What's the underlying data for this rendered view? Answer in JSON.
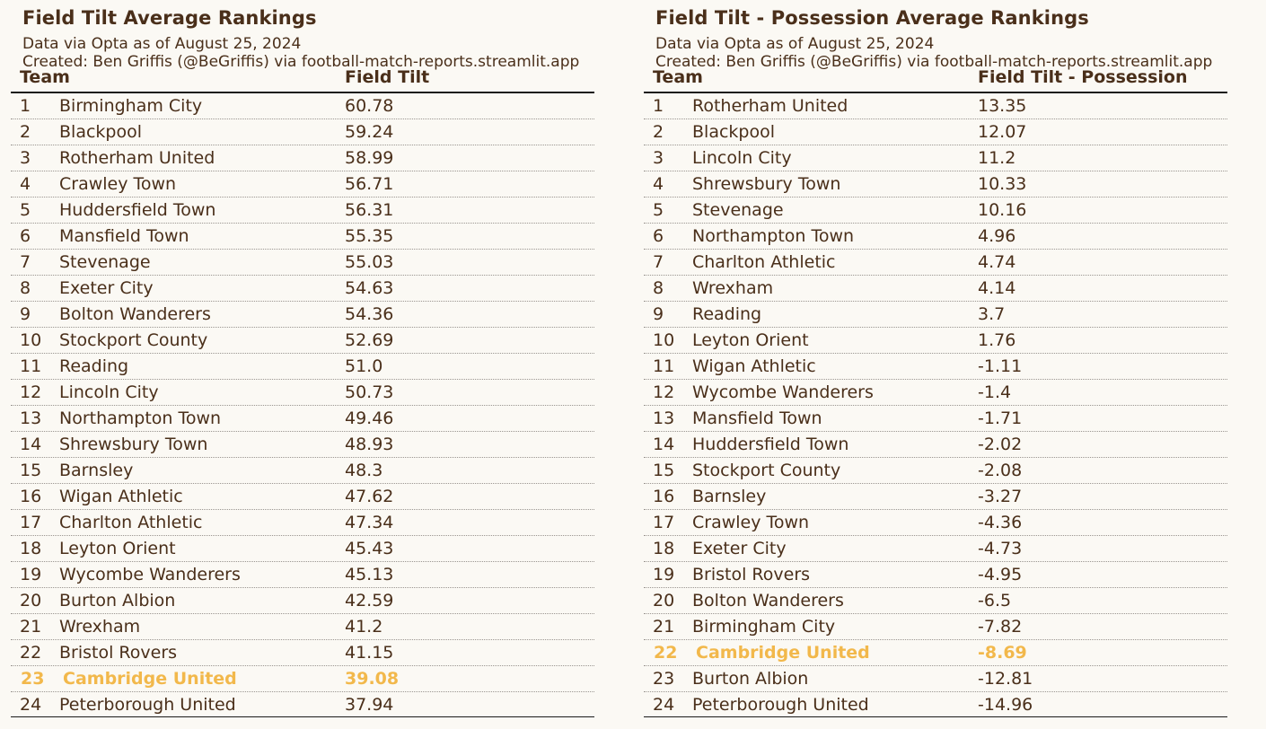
{
  "colors": {
    "background": "#fbf9f4",
    "text": "#4a2f1a",
    "highlight": "#f2b84b",
    "rule": "#1a1a1a",
    "separator": "#9a9590"
  },
  "highlight_team": "Cambridge United",
  "chart_data": [
    {
      "type": "table",
      "title": "Field Tilt Average Rankings",
      "subtitle_lines": [
        "Data via Opta as of August 25, 2024",
        "Created: Ben Griffis (@BeGriffis) via football-match-reports.streamlit.app"
      ],
      "columns": [
        "Team",
        "Field Tilt"
      ],
      "rows": [
        {
          "rank": "1",
          "team": "Birmingham City",
          "value": "60.78"
        },
        {
          "rank": "2",
          "team": "Blackpool",
          "value": "59.24"
        },
        {
          "rank": "3",
          "team": "Rotherham United",
          "value": "58.99"
        },
        {
          "rank": "4",
          "team": "Crawley Town",
          "value": "56.71"
        },
        {
          "rank": "5",
          "team": "Huddersfield Town",
          "value": "56.31"
        },
        {
          "rank": "6",
          "team": "Mansfield Town",
          "value": "55.35"
        },
        {
          "rank": "7",
          "team": "Stevenage",
          "value": "55.03"
        },
        {
          "rank": "8",
          "team": "Exeter City",
          "value": "54.63"
        },
        {
          "rank": "9",
          "team": "Bolton Wanderers",
          "value": "54.36"
        },
        {
          "rank": "10",
          "team": "Stockport County",
          "value": "52.69"
        },
        {
          "rank": "11",
          "team": "Reading",
          "value": "51.0"
        },
        {
          "rank": "12",
          "team": "Lincoln City",
          "value": "50.73"
        },
        {
          "rank": "13",
          "team": "Northampton Town",
          "value": "49.46"
        },
        {
          "rank": "14",
          "team": "Shrewsbury Town",
          "value": "48.93"
        },
        {
          "rank": "15",
          "team": "Barnsley",
          "value": "48.3"
        },
        {
          "rank": "16",
          "team": "Wigan Athletic",
          "value": "47.62"
        },
        {
          "rank": "17",
          "team": "Charlton Athletic",
          "value": "47.34"
        },
        {
          "rank": "18",
          "team": "Leyton Orient",
          "value": "45.43"
        },
        {
          "rank": "19",
          "team": "Wycombe Wanderers",
          "value": "45.13"
        },
        {
          "rank": "20",
          "team": "Burton Albion",
          "value": "42.59"
        },
        {
          "rank": "21",
          "team": "Wrexham",
          "value": "41.2"
        },
        {
          "rank": "22",
          "team": "Bristol Rovers",
          "value": "41.15"
        },
        {
          "rank": "23",
          "team": "Cambridge United",
          "value": "39.08"
        },
        {
          "rank": "24",
          "team": "Peterborough United",
          "value": "37.94"
        }
      ]
    },
    {
      "type": "table",
      "title": "Field Tilt - Possession Average Rankings",
      "subtitle_lines": [
        "Data via Opta as of August 25, 2024",
        "Created: Ben Griffis (@BeGriffis) via football-match-reports.streamlit.app"
      ],
      "columns": [
        "Team",
        "Field Tilt - Possession"
      ],
      "rows": [
        {
          "rank": "1",
          "team": "Rotherham United",
          "value": "13.35"
        },
        {
          "rank": "2",
          "team": "Blackpool",
          "value": "12.07"
        },
        {
          "rank": "3",
          "team": "Lincoln City",
          "value": "11.2"
        },
        {
          "rank": "4",
          "team": "Shrewsbury Town",
          "value": "10.33"
        },
        {
          "rank": "5",
          "team": "Stevenage",
          "value": "10.16"
        },
        {
          "rank": "6",
          "team": "Northampton Town",
          "value": "4.96"
        },
        {
          "rank": "7",
          "team": "Charlton Athletic",
          "value": "4.74"
        },
        {
          "rank": "8",
          "team": "Wrexham",
          "value": "4.14"
        },
        {
          "rank": "9",
          "team": "Reading",
          "value": "3.7"
        },
        {
          "rank": "10",
          "team": "Leyton Orient",
          "value": "1.76"
        },
        {
          "rank": "11",
          "team": "Wigan Athletic",
          "value": "-1.11"
        },
        {
          "rank": "12",
          "team": "Wycombe Wanderers",
          "value": "-1.4"
        },
        {
          "rank": "13",
          "team": "Mansfield Town",
          "value": "-1.71"
        },
        {
          "rank": "14",
          "team": "Huddersfield Town",
          "value": "-2.02"
        },
        {
          "rank": "15",
          "team": "Stockport County",
          "value": "-2.08"
        },
        {
          "rank": "16",
          "team": "Barnsley",
          "value": "-3.27"
        },
        {
          "rank": "17",
          "team": "Crawley Town",
          "value": "-4.36"
        },
        {
          "rank": "18",
          "team": "Exeter City",
          "value": "-4.73"
        },
        {
          "rank": "19",
          "team": "Bristol Rovers",
          "value": "-4.95"
        },
        {
          "rank": "20",
          "team": "Bolton Wanderers",
          "value": "-6.5"
        },
        {
          "rank": "21",
          "team": "Birmingham City",
          "value": "-7.82"
        },
        {
          "rank": "22",
          "team": "Cambridge United",
          "value": "-8.69"
        },
        {
          "rank": "23",
          "team": "Burton Albion",
          "value": "-12.81"
        },
        {
          "rank": "24",
          "team": "Peterborough United",
          "value": "-14.96"
        }
      ]
    }
  ]
}
